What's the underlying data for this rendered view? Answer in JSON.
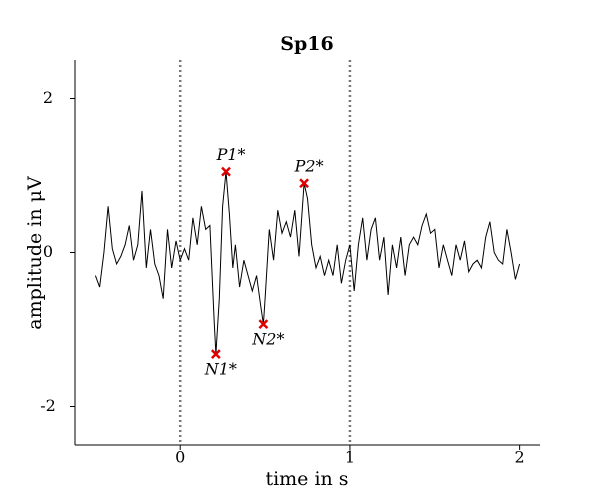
{
  "chart_data": {
    "type": "line",
    "title": "Sp16",
    "xlabel": "time in s",
    "ylabel": "amplitude in μV",
    "color": "#000000",
    "x": [
      -0.5,
      -0.475,
      -0.45,
      -0.425,
      -0.4,
      -0.375,
      -0.35,
      -0.325,
      -0.3,
      -0.275,
      -0.25,
      -0.225,
      -0.2,
      -0.175,
      -0.15,
      -0.125,
      -0.1,
      -0.075,
      -0.05,
      -0.025,
      0,
      0.025,
      0.05,
      0.075,
      0.1,
      0.125,
      0.15,
      0.175,
      0.2,
      0.21,
      0.23,
      0.25,
      0.27,
      0.29,
      0.31,
      0.325,
      0.35,
      0.375,
      0.4,
      0.425,
      0.45,
      0.475,
      0.49,
      0.5,
      0.525,
      0.55,
      0.575,
      0.6,
      0.625,
      0.65,
      0.675,
      0.7,
      0.73,
      0.75,
      0.775,
      0.8,
      0.825,
      0.85,
      0.875,
      0.9,
      0.925,
      0.95,
      0.975,
      1.0,
      1.025,
      1.05,
      1.075,
      1.1,
      1.125,
      1.15,
      1.175,
      1.2,
      1.225,
      1.25,
      1.275,
      1.3,
      1.325,
      1.35,
      1.375,
      1.4,
      1.425,
      1.45,
      1.475,
      1.5,
      1.525,
      1.55,
      1.575,
      1.6,
      1.625,
      1.65,
      1.675,
      1.7,
      1.725,
      1.75,
      1.775,
      1.8,
      1.825,
      1.85,
      1.875,
      1.9,
      1.925,
      1.95,
      1.975,
      2.0
    ],
    "values": [
      -0.3,
      -0.45,
      0.0,
      0.6,
      0.05,
      -0.15,
      -0.05,
      0.1,
      0.35,
      -0.1,
      0.1,
      0.8,
      -0.2,
      0.3,
      -0.15,
      -0.3,
      -0.6,
      0.3,
      -0.2,
      0.15,
      -0.1,
      0.05,
      -0.1,
      0.45,
      0.1,
      0.6,
      0.3,
      0.35,
      -0.9,
      -1.32,
      -0.6,
      0.6,
      1.05,
      0.5,
      -0.2,
      0.1,
      -0.45,
      -0.1,
      -0.3,
      -0.5,
      -0.3,
      -0.7,
      -0.93,
      -0.6,
      0.3,
      -0.1,
      0.55,
      0.25,
      0.4,
      0.2,
      0.55,
      -0.05,
      0.9,
      0.7,
      0.1,
      -0.2,
      -0.05,
      -0.3,
      -0.1,
      -0.3,
      0.1,
      -0.4,
      -0.1,
      0.1,
      -0.5,
      0.1,
      0.45,
      -0.1,
      0.3,
      0.45,
      -0.1,
      0.2,
      -0.55,
      0.1,
      -0.2,
      0.2,
      -0.3,
      0.1,
      0.2,
      0.1,
      0.35,
      0.5,
      0.25,
      0.3,
      -0.2,
      0.1,
      -0.1,
      -0.3,
      0.1,
      -0.1,
      0.15,
      -0.25,
      -0.15,
      -0.1,
      -0.2,
      0.2,
      0.4,
      0.0,
      -0.1,
      -0.15,
      0.3,
      0.0,
      -0.35,
      -0.15
    ],
    "peaks": {
      "color": "#e00000",
      "labels": [
        "P1*",
        "N1*",
        "N2*",
        "P2*"
      ],
      "x": [
        0.27,
        0.21,
        0.49,
        0.73
      ],
      "y": [
        1.05,
        -1.32,
        -0.93,
        0.9
      ]
    },
    "vlines": [
      0,
      1
    ],
    "xlim": [
      -0.62,
      2.12
    ],
    "ylim": [
      -2.5,
      2.5
    ],
    "xticks": [
      0,
      1,
      2
    ],
    "yticks": [
      -2,
      0,
      2
    ]
  }
}
